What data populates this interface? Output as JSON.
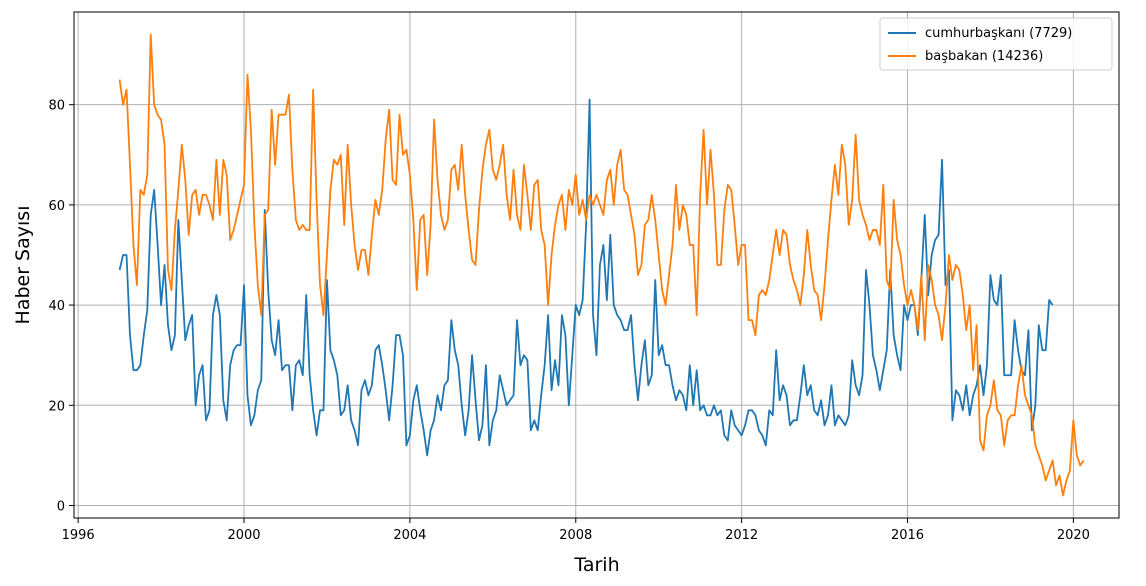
{
  "chart_data": {
    "type": "line",
    "title": "",
    "xlabel": "Tarih",
    "ylabel": "Haber Sayısı",
    "xlim": [
      1995.9,
      2021.1
    ],
    "ylim": [
      -2.5,
      98.5
    ],
    "x_ticks": [
      1996,
      2000,
      2004,
      2008,
      2012,
      2016,
      2020
    ],
    "y_ticks": [
      0,
      20,
      40,
      60,
      80
    ],
    "grid": true,
    "legend_position": "top-right",
    "x_start": 1997.0,
    "x_step": 0.08333,
    "series": [
      {
        "name": "cumhurbaşkanı (7729)",
        "color": "#1f77b4",
        "values": [
          47,
          50,
          50,
          34,
          27,
          27,
          28,
          34,
          39,
          58,
          63,
          52,
          40,
          48,
          36,
          31,
          34,
          57,
          45,
          33,
          36,
          38,
          20,
          26,
          28,
          17,
          19,
          38,
          42,
          38,
          21,
          17,
          28,
          31,
          32,
          32,
          44,
          22,
          16,
          18,
          23,
          25,
          59,
          43,
          33,
          30,
          37,
          27,
          28,
          28,
          19,
          28,
          29,
          26,
          42,
          26,
          19,
          14,
          19,
          19,
          45,
          31,
          29,
          26,
          18,
          19,
          24,
          17,
          15,
          12,
          23,
          25,
          22,
          24,
          31,
          32,
          28,
          23,
          17,
          24,
          34,
          34,
          30,
          12,
          14,
          21,
          24,
          19,
          15,
          10,
          15,
          17,
          22,
          19,
          24,
          25,
          37,
          31,
          28,
          20,
          14,
          19,
          30,
          21,
          13,
          16,
          28,
          12,
          17,
          19,
          26,
          23,
          20,
          21,
          22,
          37,
          28,
          30,
          29,
          15,
          17,
          15,
          22,
          28,
          38,
          23,
          29,
          24,
          38,
          34,
          20,
          30,
          40,
          38,
          41,
          56,
          81,
          38,
          30,
          48,
          52,
          41,
          54,
          40,
          38,
          37,
          35,
          35,
          38,
          28,
          21,
          28,
          33,
          24,
          26,
          45,
          30,
          32,
          28,
          28,
          24,
          21,
          23,
          22,
          19,
          28,
          20,
          27,
          19,
          20,
          18,
          18,
          20,
          18,
          19,
          14,
          13,
          19,
          16,
          15,
          14,
          16,
          19,
          19,
          18,
          15,
          14,
          12,
          19,
          18,
          31,
          21,
          24,
          22,
          16,
          17,
          17,
          22,
          28,
          22,
          24,
          19,
          18,
          21,
          16,
          18,
          24,
          16,
          18,
          17,
          16,
          18,
          29,
          24,
          22,
          26,
          47,
          40,
          30,
          27,
          23,
          27,
          31,
          47,
          34,
          30,
          27,
          40,
          37,
          40,
          40,
          34,
          45,
          58,
          42,
          50,
          53,
          54,
          69,
          44,
          47,
          17,
          23,
          22,
          19,
          24,
          18,
          22,
          24,
          28,
          22,
          28,
          46,
          41,
          40,
          46,
          26,
          26,
          26,
          37,
          31,
          27,
          26,
          35,
          15,
          20,
          36,
          31,
          31,
          41,
          40
        ]
      },
      {
        "name": "başbakan (14236)",
        "color": "#ff7f0e",
        "values": [
          85,
          80,
          83,
          68,
          52,
          44,
          63,
          62,
          66,
          94,
          80,
          78,
          77,
          72,
          47,
          43,
          55,
          63,
          72,
          65,
          54,
          62,
          63,
          58,
          62,
          62,
          60,
          57,
          69,
          58,
          69,
          66,
          53,
          55,
          58,
          61,
          64,
          86,
          75,
          56,
          44,
          38,
          58,
          59,
          79,
          68,
          78,
          78,
          78,
          82,
          67,
          57,
          55,
          56,
          55,
          55,
          83,
          61,
          44,
          38,
          50,
          63,
          69,
          68,
          70,
          56,
          72,
          60,
          52,
          47,
          51,
          51,
          46,
          54,
          61,
          58,
          63,
          73,
          79,
          65,
          64,
          78,
          70,
          71,
          66,
          57,
          43,
          57,
          58,
          46,
          56,
          77,
          65,
          58,
          55,
          57,
          67,
          68,
          63,
          72,
          62,
          55,
          49,
          48,
          59,
          67,
          72,
          75,
          67,
          65,
          68,
          72,
          62,
          57,
          67,
          58,
          55,
          68,
          62,
          55,
          64,
          65,
          55,
          52,
          40,
          50,
          56,
          60,
          62,
          55,
          63,
          60,
          66,
          58,
          61,
          57,
          62,
          60,
          62,
          60,
          58,
          65,
          67,
          60,
          68,
          71,
          63,
          62,
          58,
          54,
          46,
          48,
          56,
          57,
          62,
          57,
          50,
          43,
          40,
          46,
          52,
          64,
          55,
          60,
          58,
          52,
          52,
          38,
          62,
          75,
          60,
          71,
          62,
          48,
          48,
          59,
          64,
          63,
          56,
          48,
          52,
          52,
          37,
          37,
          34,
          42,
          43,
          42,
          45,
          50,
          55,
          50,
          55,
          54,
          48,
          45,
          43,
          40,
          46,
          55,
          48,
          43,
          42,
          37,
          44,
          53,
          61,
          68,
          62,
          72,
          68,
          56,
          61,
          74,
          61,
          58,
          56,
          53,
          55,
          55,
          52,
          64,
          45,
          43,
          61,
          53,
          50,
          44,
          40,
          43,
          40,
          35,
          46,
          33,
          48,
          45,
          40,
          38,
          33,
          40,
          50,
          45,
          48,
          47,
          42,
          35,
          40,
          27,
          36,
          13,
          11,
          18,
          20,
          25,
          19,
          18,
          12,
          17,
          18,
          18,
          24,
          28,
          22,
          20,
          18,
          12,
          10,
          8,
          5,
          7,
          9,
          4,
          6,
          2,
          5,
          7,
          17,
          10,
          8,
          9
        ]
      }
    ]
  }
}
